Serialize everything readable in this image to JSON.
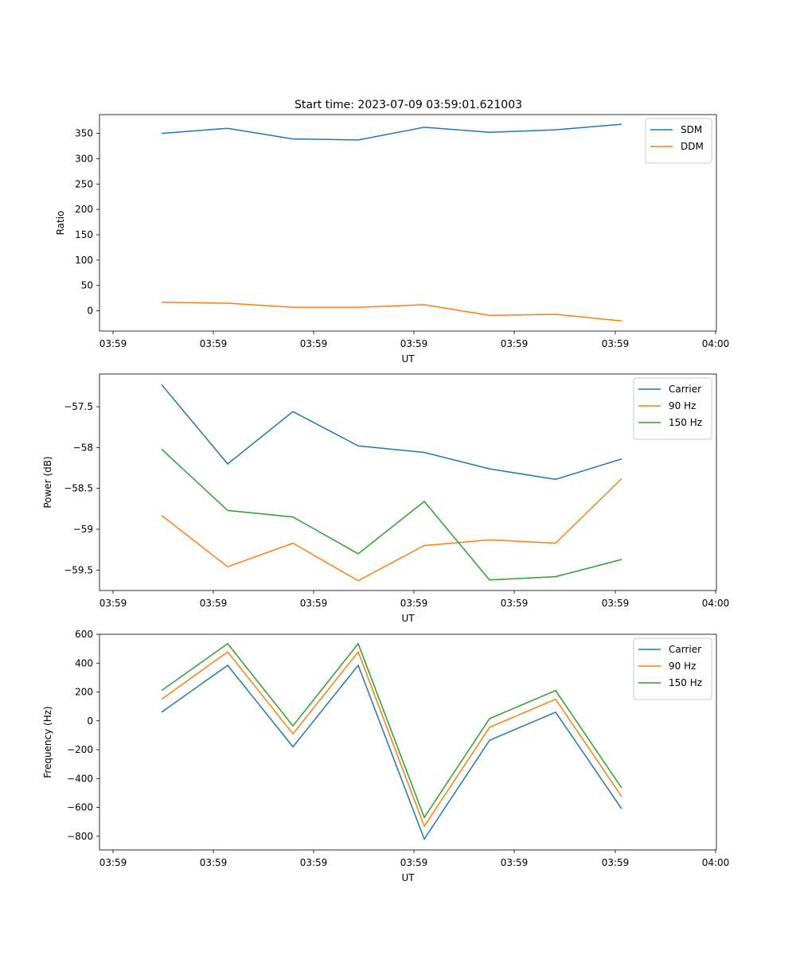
{
  "figure_title": "Start time: 2023-07-09 03:59:01.621003",
  "colors": {
    "blue": "#1f77b4",
    "orange": "#ff7f0e",
    "green": "#2ca02c"
  },
  "chart_data": [
    {
      "type": "line",
      "title": "Start time: 2023-07-09 03:59:01.621003",
      "xlabel": "UT",
      "ylabel": "Ratio",
      "x_ticks": [
        "03:59",
        "03:59",
        "03:59",
        "03:59",
        "03:59",
        "03:59",
        "04:00"
      ],
      "y_ticks": [
        0,
        50,
        100,
        150,
        200,
        250,
        300,
        350
      ],
      "ylim": [
        -40,
        387
      ],
      "legend_position": "top-right",
      "series": [
        {
          "name": "SDM",
          "color": "#1f77b4",
          "values": [
            350,
            360,
            339,
            337,
            362,
            352,
            357,
            368
          ]
        },
        {
          "name": "DDM",
          "color": "#ff7f0e",
          "values": [
            17,
            15,
            7,
            7,
            12,
            -9,
            -7,
            -20
          ]
        }
      ]
    },
    {
      "type": "line",
      "title": "",
      "xlabel": "UT",
      "ylabel": "Power (dB)",
      "x_ticks": [
        "03:59",
        "03:59",
        "03:59",
        "03:59",
        "03:59",
        "03:59",
        "04:00"
      ],
      "y_ticks": [
        -59.5,
        -59.0,
        -58.5,
        -58.0,
        -57.5
      ],
      "ylim": [
        -59.75,
        -57.1
      ],
      "legend_position": "top-right",
      "series": [
        {
          "name": "Carrier",
          "color": "#1f77b4",
          "values": [
            -57.23,
            -58.2,
            -57.56,
            -57.98,
            -58.06,
            -58.26,
            -58.39,
            -58.14
          ]
        },
        {
          "name": "90 Hz",
          "color": "#ff7f0e",
          "values": [
            -58.83,
            -59.46,
            -59.17,
            -59.63,
            -59.2,
            -59.13,
            -59.17,
            -58.38
          ]
        },
        {
          "name": "150 Hz",
          "color": "#2ca02c",
          "values": [
            -58.02,
            -58.77,
            -58.85,
            -59.3,
            -58.66,
            -59.62,
            -59.58,
            -59.37
          ]
        }
      ]
    },
    {
      "type": "line",
      "title": "",
      "xlabel": "UT",
      "ylabel": "Frequency (Hz)",
      "x_ticks": [
        "03:59",
        "03:59",
        "03:59",
        "03:59",
        "03:59",
        "03:59",
        "04:00"
      ],
      "y_ticks": [
        -800,
        -600,
        -400,
        -200,
        0,
        200,
        400,
        600
      ],
      "ylim": [
        -895,
        600
      ],
      "legend_position": "top-right",
      "series": [
        {
          "name": "Carrier",
          "color": "#1f77b4",
          "values": [
            60,
            385,
            -180,
            385,
            -820,
            -135,
            60,
            -610
          ]
        },
        {
          "name": "90 Hz",
          "color": "#ff7f0e",
          "values": [
            150,
            478,
            -90,
            478,
            -730,
            -45,
            150,
            -525
          ]
        },
        {
          "name": "150 Hz",
          "color": "#2ca02c",
          "values": [
            210,
            535,
            -35,
            535,
            -670,
            15,
            210,
            -465
          ]
        }
      ]
    }
  ]
}
